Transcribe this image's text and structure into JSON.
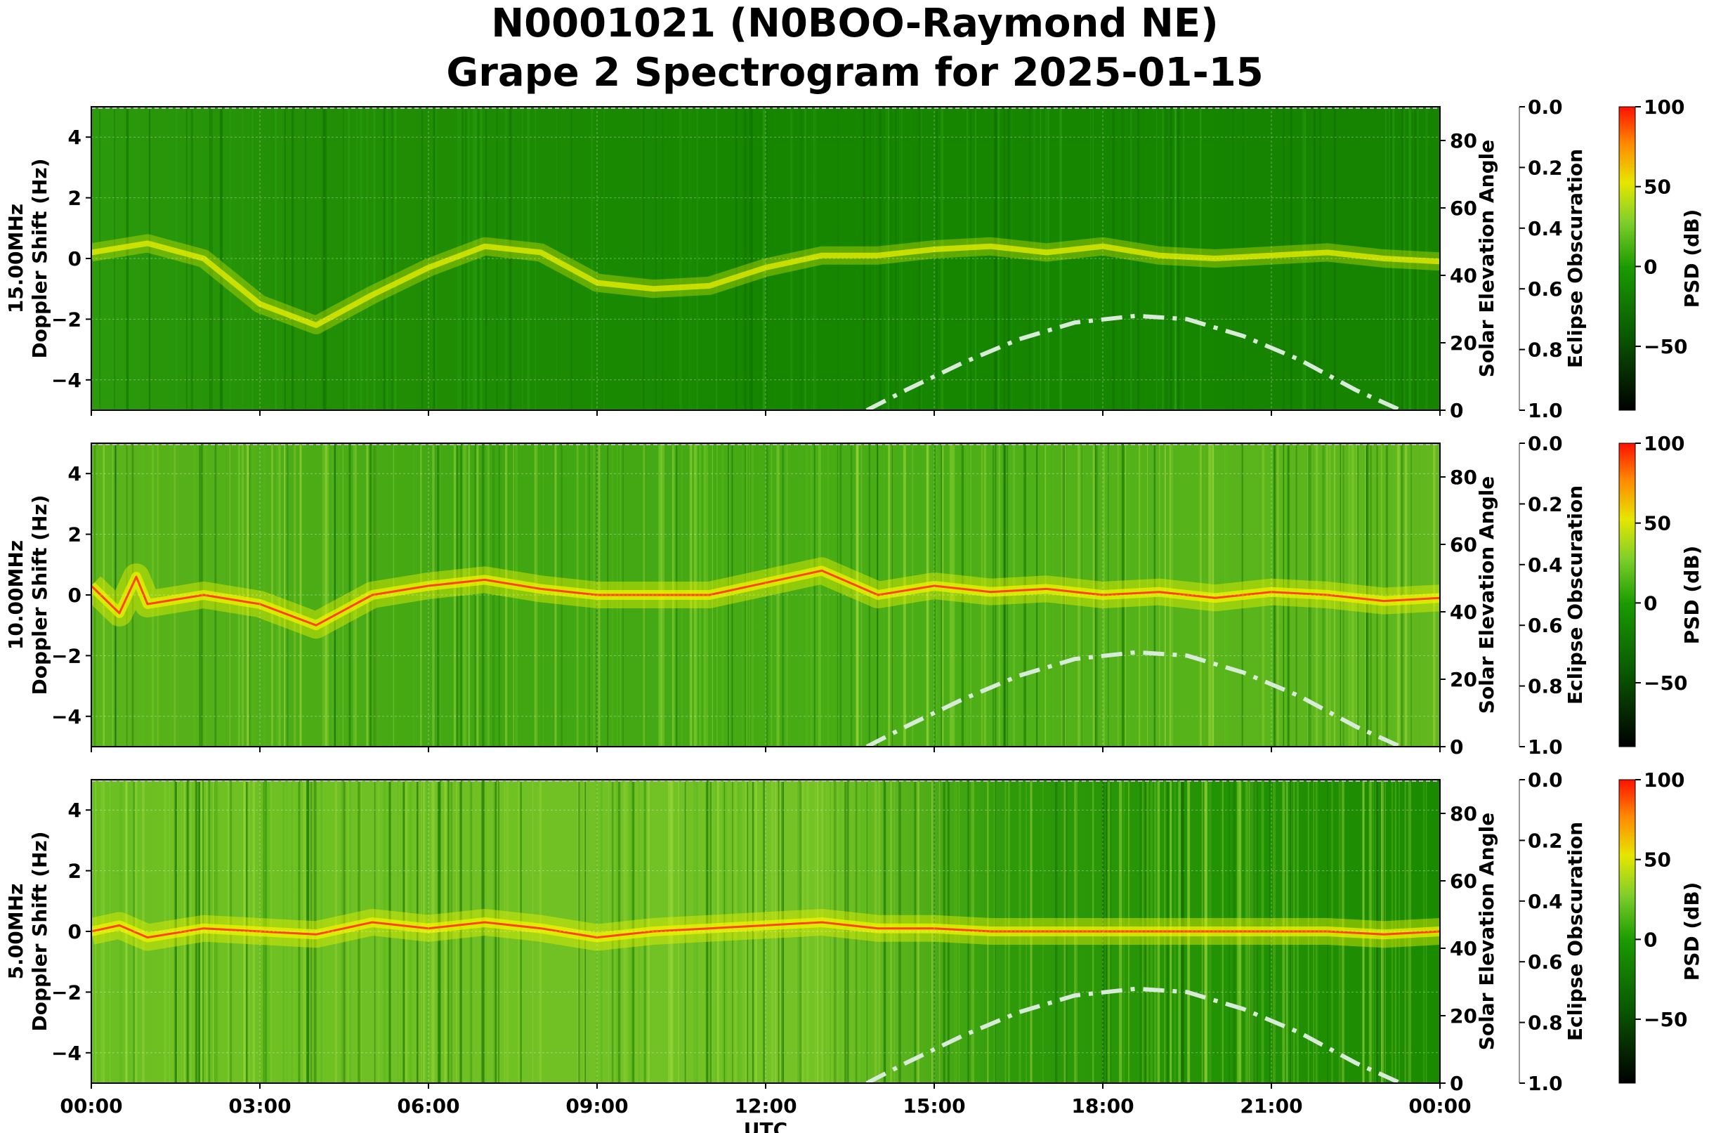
{
  "title_line1": "N0001021 (N0BOO-Raymond NE)",
  "title_line2": "Grape 2 Spectrogram for 2025-01-15",
  "colors": {
    "spec_low": "#0b4d00",
    "spec_mid": "#1f9a00",
    "spec_high": "#e6e600",
    "spec_peak": "#ff2200",
    "solar_curve": "#d8ead8"
  },
  "chart_data": [
    {
      "type": "heatmap",
      "panel": "15.00MHz",
      "ylabel_line1": "15.00MHz",
      "ylabel_line2": "Doppler Shift (Hz)",
      "xlabel": "",
      "ylim": [
        -5,
        5
      ],
      "yticks": [
        "4",
        "2",
        "0",
        "−2",
        "−4"
      ],
      "ytick_values": [
        4,
        2,
        0,
        -2,
        -4
      ],
      "x_ticks": [
        "00:00",
        "03:00",
        "06:00",
        "09:00",
        "12:00",
        "15:00",
        "18:00",
        "21:00",
        "00:00"
      ],
      "right_axis_1": {
        "label": "Solar Elevation Angle",
        "ticks": [
          "0",
          "20",
          "40",
          "60",
          "80"
        ],
        "ylim": [
          0,
          90
        ]
      },
      "right_axis_2": {
        "label": "Eclipse Obscuration",
        "ticks": [
          "0.0",
          "0.2",
          "0.4",
          "0.6",
          "0.8",
          "1.0"
        ],
        "ylim": [
          1.0,
          0.0
        ]
      },
      "colorbar": {
        "label": "PSD (dB)",
        "ticks": [
          "100",
          "50",
          "0",
          "−50"
        ],
        "range": [
          -90,
          100
        ]
      },
      "trace": [
        [
          0,
          0.2
        ],
        [
          1,
          0.5
        ],
        [
          2,
          0.0
        ],
        [
          3,
          -1.5
        ],
        [
          4,
          -2.2
        ],
        [
          5,
          -1.2
        ],
        [
          6,
          -0.3
        ],
        [
          7,
          0.4
        ],
        [
          8,
          0.2
        ],
        [
          9,
          -0.8
        ],
        [
          10,
          -1.0
        ],
        [
          11,
          -0.9
        ],
        [
          12,
          -0.3
        ],
        [
          13,
          0.1
        ],
        [
          14,
          0.1
        ],
        [
          15,
          0.3
        ],
        [
          16,
          0.4
        ],
        [
          17,
          0.2
        ],
        [
          18,
          0.4
        ],
        [
          19,
          0.1
        ],
        [
          20,
          0.0
        ],
        [
          21,
          0.1
        ],
        [
          22,
          0.2
        ],
        [
          23,
          0.0
        ],
        [
          24,
          -0.1
        ]
      ],
      "solar_elevation": [
        [
          13.8,
          0
        ],
        [
          14.5,
          6
        ],
        [
          15.5,
          14
        ],
        [
          16.5,
          21
        ],
        [
          17.5,
          26
        ],
        [
          18.6,
          28
        ],
        [
          19.5,
          27
        ],
        [
          20.5,
          22
        ],
        [
          21.5,
          15
        ],
        [
          22.5,
          6
        ],
        [
          23.3,
          0
        ]
      ]
    },
    {
      "type": "heatmap",
      "panel": "10.00MHz",
      "ylabel_line1": "10.00MHz",
      "ylabel_line2": "Doppler Shift (Hz)",
      "xlabel": "",
      "ylim": [
        -5,
        5
      ],
      "yticks": [
        "4",
        "2",
        "0",
        "−2",
        "−4"
      ],
      "ytick_values": [
        4,
        2,
        0,
        -2,
        -4
      ],
      "x_ticks": [
        "00:00",
        "03:00",
        "06:00",
        "09:00",
        "12:00",
        "15:00",
        "18:00",
        "21:00",
        "00:00"
      ],
      "right_axis_1": {
        "label": "Solar Elevation Angle",
        "ticks": [
          "0",
          "20",
          "40",
          "60",
          "80"
        ],
        "ylim": [
          0,
          90
        ]
      },
      "right_axis_2": {
        "label": "Eclipse Obscuration",
        "ticks": [
          "0.0",
          "0.2",
          "0.4",
          "0.6",
          "0.8",
          "1.0"
        ],
        "ylim": [
          1.0,
          0.0
        ]
      },
      "colorbar": {
        "label": "PSD (dB)",
        "ticks": [
          "100",
          "50",
          "0",
          "−50"
        ],
        "range": [
          -90,
          100
        ]
      },
      "trace": [
        [
          0,
          0.3
        ],
        [
          0.5,
          -0.6
        ],
        [
          0.8,
          0.6
        ],
        [
          1,
          -0.3
        ],
        [
          2,
          0.0
        ],
        [
          3,
          -0.3
        ],
        [
          4,
          -1.0
        ],
        [
          5,
          0.0
        ],
        [
          6,
          0.3
        ],
        [
          7,
          0.5
        ],
        [
          8,
          0.2
        ],
        [
          9,
          0.0
        ],
        [
          10,
          0.0
        ],
        [
          11,
          0.0
        ],
        [
          12,
          0.4
        ],
        [
          13,
          0.8
        ],
        [
          14,
          0.0
        ],
        [
          15,
          0.3
        ],
        [
          16,
          0.1
        ],
        [
          17,
          0.2
        ],
        [
          18,
          0.0
        ],
        [
          19,
          0.1
        ],
        [
          20,
          -0.1
        ],
        [
          21,
          0.1
        ],
        [
          22,
          0.0
        ],
        [
          23,
          -0.2
        ],
        [
          24,
          -0.1
        ]
      ],
      "solar_elevation": [
        [
          13.8,
          0
        ],
        [
          14.5,
          6
        ],
        [
          15.5,
          14
        ],
        [
          16.5,
          21
        ],
        [
          17.5,
          26
        ],
        [
          18.6,
          28
        ],
        [
          19.5,
          27
        ],
        [
          20.5,
          22
        ],
        [
          21.5,
          15
        ],
        [
          22.5,
          6
        ],
        [
          23.3,
          0
        ]
      ]
    },
    {
      "type": "heatmap",
      "panel": "5.00MHz",
      "ylabel_line1": "5.00MHz",
      "ylabel_line2": "Doppler Shift (Hz)",
      "xlabel": "UTC",
      "ylim": [
        -5,
        5
      ],
      "yticks": [
        "4",
        "2",
        "0",
        "−2",
        "−4"
      ],
      "ytick_values": [
        4,
        2,
        0,
        -2,
        -4
      ],
      "x_ticks": [
        "00:00",
        "03:00",
        "06:00",
        "09:00",
        "12:00",
        "15:00",
        "18:00",
        "21:00",
        "00:00"
      ],
      "right_axis_1": {
        "label": "Solar Elevation Angle",
        "ticks": [
          "0",
          "20",
          "40",
          "60",
          "80"
        ],
        "ylim": [
          0,
          90
        ]
      },
      "right_axis_2": {
        "label": "Eclipse Obscuration",
        "ticks": [
          "0.0",
          "0.2",
          "0.4",
          "0.6",
          "0.8",
          "1.0"
        ],
        "ylim": [
          1.0,
          0.0
        ]
      },
      "colorbar": {
        "label": "PSD (dB)",
        "ticks": [
          "100",
          "50",
          "0",
          "−50"
        ],
        "range": [
          -90,
          100
        ]
      },
      "trace": [
        [
          0,
          0.0
        ],
        [
          0.5,
          0.2
        ],
        [
          1,
          -0.2
        ],
        [
          2,
          0.1
        ],
        [
          3,
          0.0
        ],
        [
          4,
          -0.1
        ],
        [
          5,
          0.3
        ],
        [
          6,
          0.1
        ],
        [
          7,
          0.3
        ],
        [
          8,
          0.1
        ],
        [
          9,
          -0.2
        ],
        [
          10,
          0.0
        ],
        [
          11,
          0.1
        ],
        [
          12,
          0.2
        ],
        [
          13,
          0.3
        ],
        [
          14,
          0.1
        ],
        [
          15,
          0.1
        ],
        [
          16,
          0.0
        ],
        [
          17,
          0.0
        ],
        [
          18,
          0.0
        ],
        [
          19,
          0.0
        ],
        [
          20,
          0.0
        ],
        [
          21,
          0.0
        ],
        [
          22,
          0.0
        ],
        [
          23,
          -0.1
        ],
        [
          24,
          0.0
        ]
      ],
      "solar_elevation": [
        [
          13.8,
          0
        ],
        [
          14.5,
          6
        ],
        [
          15.5,
          14
        ],
        [
          16.5,
          21
        ],
        [
          17.5,
          26
        ],
        [
          18.6,
          28
        ],
        [
          19.5,
          27
        ],
        [
          20.5,
          22
        ],
        [
          21.5,
          15
        ],
        [
          22.5,
          6
        ],
        [
          23.3,
          0
        ]
      ]
    }
  ]
}
